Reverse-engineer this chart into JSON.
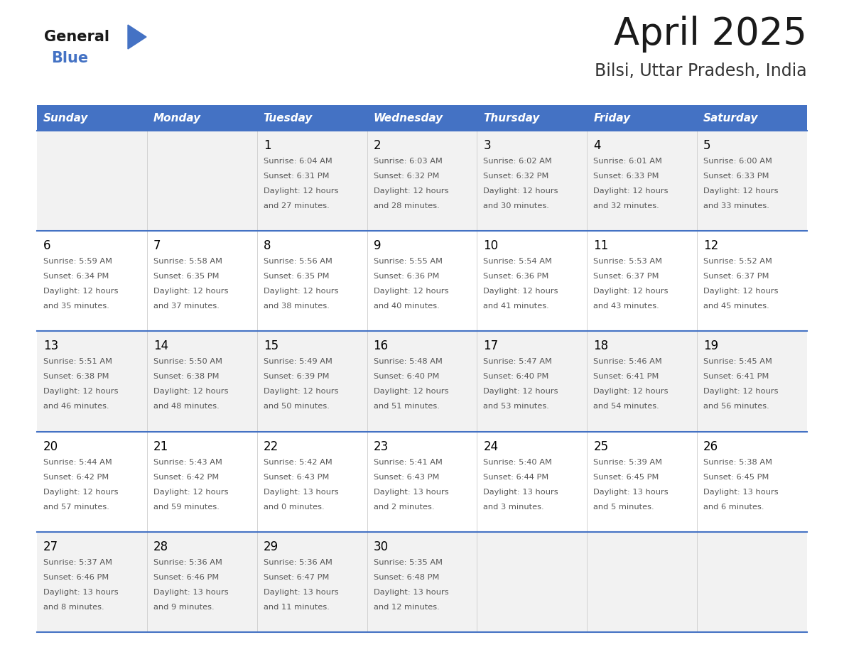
{
  "title": "April 2025",
  "subtitle": "Bilsi, Uttar Pradesh, India",
  "header_bg_color": "#4472C4",
  "header_text_color": "#FFFFFF",
  "days_of_week": [
    "Sunday",
    "Monday",
    "Tuesday",
    "Wednesday",
    "Thursday",
    "Friday",
    "Saturday"
  ],
  "row_bg_even": "#FFFFFF",
  "row_bg_odd": "#F2F2F2",
  "cell_border_color": "#4472C4",
  "day_number_color": "#000000",
  "info_text_color": "#555555",
  "logo_text_general": "General",
  "logo_text_blue": "Blue",
  "logo_triangle_color": "#4472C4",
  "weeks": [
    {
      "days": [
        {
          "date": null,
          "info": null
        },
        {
          "date": null,
          "info": null
        },
        {
          "date": 1,
          "info": "Sunrise: 6:04 AM\nSunset: 6:31 PM\nDaylight: 12 hours\nand 27 minutes."
        },
        {
          "date": 2,
          "info": "Sunrise: 6:03 AM\nSunset: 6:32 PM\nDaylight: 12 hours\nand 28 minutes."
        },
        {
          "date": 3,
          "info": "Sunrise: 6:02 AM\nSunset: 6:32 PM\nDaylight: 12 hours\nand 30 minutes."
        },
        {
          "date": 4,
          "info": "Sunrise: 6:01 AM\nSunset: 6:33 PM\nDaylight: 12 hours\nand 32 minutes."
        },
        {
          "date": 5,
          "info": "Sunrise: 6:00 AM\nSunset: 6:33 PM\nDaylight: 12 hours\nand 33 minutes."
        }
      ]
    },
    {
      "days": [
        {
          "date": 6,
          "info": "Sunrise: 5:59 AM\nSunset: 6:34 PM\nDaylight: 12 hours\nand 35 minutes."
        },
        {
          "date": 7,
          "info": "Sunrise: 5:58 AM\nSunset: 6:35 PM\nDaylight: 12 hours\nand 37 minutes."
        },
        {
          "date": 8,
          "info": "Sunrise: 5:56 AM\nSunset: 6:35 PM\nDaylight: 12 hours\nand 38 minutes."
        },
        {
          "date": 9,
          "info": "Sunrise: 5:55 AM\nSunset: 6:36 PM\nDaylight: 12 hours\nand 40 minutes."
        },
        {
          "date": 10,
          "info": "Sunrise: 5:54 AM\nSunset: 6:36 PM\nDaylight: 12 hours\nand 41 minutes."
        },
        {
          "date": 11,
          "info": "Sunrise: 5:53 AM\nSunset: 6:37 PM\nDaylight: 12 hours\nand 43 minutes."
        },
        {
          "date": 12,
          "info": "Sunrise: 5:52 AM\nSunset: 6:37 PM\nDaylight: 12 hours\nand 45 minutes."
        }
      ]
    },
    {
      "days": [
        {
          "date": 13,
          "info": "Sunrise: 5:51 AM\nSunset: 6:38 PM\nDaylight: 12 hours\nand 46 minutes."
        },
        {
          "date": 14,
          "info": "Sunrise: 5:50 AM\nSunset: 6:38 PM\nDaylight: 12 hours\nand 48 minutes."
        },
        {
          "date": 15,
          "info": "Sunrise: 5:49 AM\nSunset: 6:39 PM\nDaylight: 12 hours\nand 50 minutes."
        },
        {
          "date": 16,
          "info": "Sunrise: 5:48 AM\nSunset: 6:40 PM\nDaylight: 12 hours\nand 51 minutes."
        },
        {
          "date": 17,
          "info": "Sunrise: 5:47 AM\nSunset: 6:40 PM\nDaylight: 12 hours\nand 53 minutes."
        },
        {
          "date": 18,
          "info": "Sunrise: 5:46 AM\nSunset: 6:41 PM\nDaylight: 12 hours\nand 54 minutes."
        },
        {
          "date": 19,
          "info": "Sunrise: 5:45 AM\nSunset: 6:41 PM\nDaylight: 12 hours\nand 56 minutes."
        }
      ]
    },
    {
      "days": [
        {
          "date": 20,
          "info": "Sunrise: 5:44 AM\nSunset: 6:42 PM\nDaylight: 12 hours\nand 57 minutes."
        },
        {
          "date": 21,
          "info": "Sunrise: 5:43 AM\nSunset: 6:42 PM\nDaylight: 12 hours\nand 59 minutes."
        },
        {
          "date": 22,
          "info": "Sunrise: 5:42 AM\nSunset: 6:43 PM\nDaylight: 13 hours\nand 0 minutes."
        },
        {
          "date": 23,
          "info": "Sunrise: 5:41 AM\nSunset: 6:43 PM\nDaylight: 13 hours\nand 2 minutes."
        },
        {
          "date": 24,
          "info": "Sunrise: 5:40 AM\nSunset: 6:44 PM\nDaylight: 13 hours\nand 3 minutes."
        },
        {
          "date": 25,
          "info": "Sunrise: 5:39 AM\nSunset: 6:45 PM\nDaylight: 13 hours\nand 5 minutes."
        },
        {
          "date": 26,
          "info": "Sunrise: 5:38 AM\nSunset: 6:45 PM\nDaylight: 13 hours\nand 6 minutes."
        }
      ]
    },
    {
      "days": [
        {
          "date": 27,
          "info": "Sunrise: 5:37 AM\nSunset: 6:46 PM\nDaylight: 13 hours\nand 8 minutes."
        },
        {
          "date": 28,
          "info": "Sunrise: 5:36 AM\nSunset: 6:46 PM\nDaylight: 13 hours\nand 9 minutes."
        },
        {
          "date": 29,
          "info": "Sunrise: 5:36 AM\nSunset: 6:47 PM\nDaylight: 13 hours\nand 11 minutes."
        },
        {
          "date": 30,
          "info": "Sunrise: 5:35 AM\nSunset: 6:48 PM\nDaylight: 13 hours\nand 12 minutes."
        },
        {
          "date": null,
          "info": null
        },
        {
          "date": null,
          "info": null
        },
        {
          "date": null,
          "info": null
        }
      ]
    }
  ]
}
